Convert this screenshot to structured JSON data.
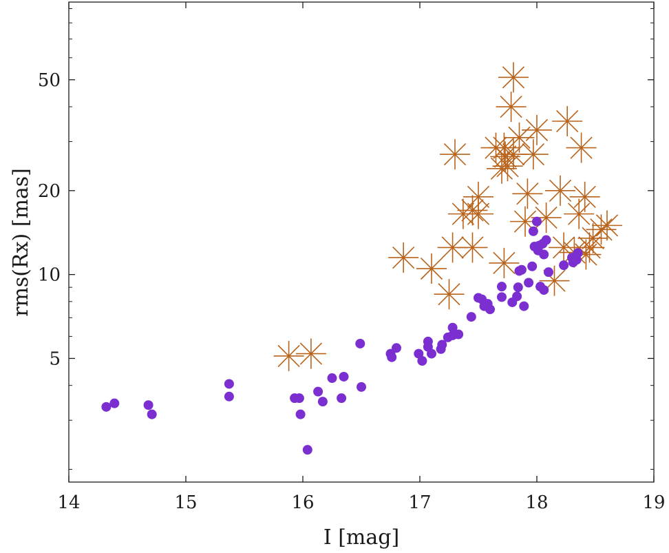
{
  "chart_data": {
    "type": "scatter",
    "title": "",
    "xlabel": "I [mag]",
    "ylabel": "rms(Rx) [mas]",
    "xlim": [
      14,
      19
    ],
    "ylim": [
      1.8,
      95
    ],
    "yscale": "log",
    "grid": false,
    "x_ticks": [
      14,
      15,
      16,
      17,
      18,
      19
    ],
    "x_tick_labels": [
      "14",
      "15",
      "16",
      "17",
      "18",
      "19"
    ],
    "y_ticks": [
      5,
      10,
      20,
      50
    ],
    "y_tick_labels": [
      "5",
      "10",
      "20",
      "50"
    ],
    "colors": {
      "dots": "#7b2fd0",
      "stars": "#b8621a",
      "axis": "#1a1a1a"
    },
    "series": [
      {
        "name": "dots",
        "marker": "circle",
        "points": [
          [
            14.32,
            3.35
          ],
          [
            14.39,
            3.45
          ],
          [
            14.68,
            3.4
          ],
          [
            14.71,
            3.15
          ],
          [
            15.37,
            4.05
          ],
          [
            15.37,
            3.65
          ],
          [
            15.93,
            3.6
          ],
          [
            15.97,
            3.6
          ],
          [
            15.98,
            3.15
          ],
          [
            16.04,
            2.35
          ],
          [
            16.13,
            3.8
          ],
          [
            16.17,
            3.5
          ],
          [
            16.25,
            4.25
          ],
          [
            16.33,
            3.6
          ],
          [
            16.35,
            4.3
          ],
          [
            16.49,
            5.65
          ],
          [
            16.5,
            3.95
          ],
          [
            16.75,
            5.2
          ],
          [
            16.76,
            5.05
          ],
          [
            16.8,
            5.45
          ],
          [
            16.99,
            5.2
          ],
          [
            17.02,
            4.9
          ],
          [
            17.07,
            5.5
          ],
          [
            17.07,
            5.75
          ],
          [
            17.1,
            5.2
          ],
          [
            17.18,
            5.4
          ],
          [
            17.19,
            5.6
          ],
          [
            17.24,
            5.95
          ],
          [
            17.28,
            6.05
          ],
          [
            17.28,
            6.45
          ],
          [
            17.33,
            6.1
          ],
          [
            17.44,
            7.05
          ],
          [
            17.5,
            8.25
          ],
          [
            17.53,
            8.15
          ],
          [
            17.55,
            7.7
          ],
          [
            17.58,
            7.85
          ],
          [
            17.6,
            7.5
          ],
          [
            17.7,
            9.05
          ],
          [
            17.7,
            8.3
          ],
          [
            17.79,
            7.95
          ],
          [
            17.83,
            8.35
          ],
          [
            17.84,
            9.0
          ],
          [
            17.85,
            10.3
          ],
          [
            17.87,
            10.4
          ],
          [
            17.89,
            7.7
          ],
          [
            17.93,
            9.35
          ],
          [
            17.96,
            10.7
          ],
          [
            17.97,
            14.3
          ],
          [
            17.98,
            12.6
          ],
          [
            18.0,
            15.5
          ],
          [
            18.01,
            12.2
          ],
          [
            18.02,
            12.7
          ],
          [
            18.03,
            9.05
          ],
          [
            18.05,
            12.9
          ],
          [
            18.06,
            8.8
          ],
          [
            18.06,
            11.8
          ],
          [
            18.08,
            13.3
          ],
          [
            18.1,
            10.2
          ],
          [
            18.23,
            10.8
          ],
          [
            18.3,
            11.5
          ],
          [
            18.31,
            11.05
          ],
          [
            18.34,
            11.3
          ],
          [
            18.35,
            11.95
          ]
        ]
      },
      {
        "name": "stars",
        "marker": "asterisk",
        "points": [
          [
            15.88,
            5.1
          ],
          [
            16.07,
            5.2
          ],
          [
            16.86,
            11.5
          ],
          [
            17.1,
            10.5
          ],
          [
            17.25,
            8.5
          ],
          [
            17.28,
            12.5
          ],
          [
            17.3,
            27.0
          ],
          [
            17.37,
            16.5
          ],
          [
            17.45,
            12.5
          ],
          [
            17.45,
            17.0
          ],
          [
            17.5,
            16.5
          ],
          [
            17.5,
            19.0
          ],
          [
            17.65,
            28.5
          ],
          [
            17.7,
            24.0
          ],
          [
            17.72,
            28.5
          ],
          [
            17.73,
            26.5
          ],
          [
            17.72,
            11.0
          ],
          [
            17.75,
            24.5
          ],
          [
            17.78,
            40.0
          ],
          [
            17.8,
            51.0
          ],
          [
            17.8,
            27.0
          ],
          [
            17.85,
            31.0
          ],
          [
            17.9,
            15.5
          ],
          [
            17.92,
            19.5
          ],
          [
            17.97,
            27.0
          ],
          [
            18.0,
            33.0
          ],
          [
            18.08,
            16.0
          ],
          [
            18.15,
            9.5
          ],
          [
            18.2,
            20.0
          ],
          [
            18.23,
            12.5
          ],
          [
            18.26,
            35.5
          ],
          [
            18.32,
            12.0
          ],
          [
            18.36,
            16.5
          ],
          [
            18.38,
            28.5
          ],
          [
            18.41,
            19.0
          ],
          [
            18.42,
            11.8
          ],
          [
            18.45,
            12.5
          ],
          [
            18.48,
            13.5
          ],
          [
            18.55,
            14.5
          ],
          [
            18.6,
            15.0
          ]
        ]
      }
    ]
  }
}
